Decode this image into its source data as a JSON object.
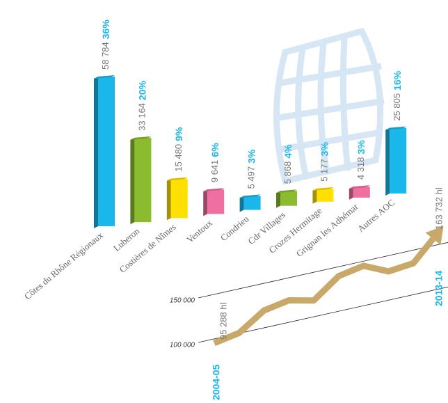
{
  "chart_data": [
    {
      "type": "bar",
      "categories": [
        "Côtes du Rhône Régionaux",
        "Luberon",
        "Costières de Nîmes",
        "Ventoux",
        "Condrieu",
        "Cdr Villages",
        "Crozes Hermitage",
        "Grignan les Adhémar",
        "Autres AOC"
      ],
      "values": [
        58784,
        33164,
        15480,
        9641,
        5497,
        5868,
        5177,
        4318,
        25805
      ],
      "value_labels": [
        "58 784",
        "33 164",
        "15 480",
        "9 641",
        "5 497",
        "5 868",
        "5 177",
        "4 318",
        "25 805"
      ],
      "shares": [
        36,
        20,
        9,
        6,
        3,
        4,
        3,
        3,
        16
      ],
      "share_labels": [
        "36%",
        "20%",
        "9%",
        "6%",
        "3%",
        "4%",
        "3%",
        "3%",
        "16%"
      ],
      "colors": [
        "#1ab7ea",
        "#8bbb2e",
        "#ffe000",
        "#ee6fa0",
        "#1ab7ea",
        "#8bbb2e",
        "#ffe000",
        "#ee6fa0",
        "#1ab7ea"
      ]
    },
    {
      "type": "line",
      "categories": [
        "2004-05",
        null,
        null,
        null,
        null,
        null,
        null,
        null,
        null,
        "2013-14"
      ],
      "values": [
        95288,
        100500,
        119500,
        124700,
        118300,
        139500,
        144800,
        132300,
        135300,
        163732
      ],
      "value_labels": [
        "95 288 hl",
        null,
        null,
        null,
        null,
        null,
        null,
        null,
        null,
        "163 732 hl"
      ],
      "yticks": [
        {
          "value": 100000,
          "label": "100 000"
        },
        {
          "value": 150000,
          "label": "150 000"
        }
      ],
      "color": "#c8a96a"
    }
  ]
}
